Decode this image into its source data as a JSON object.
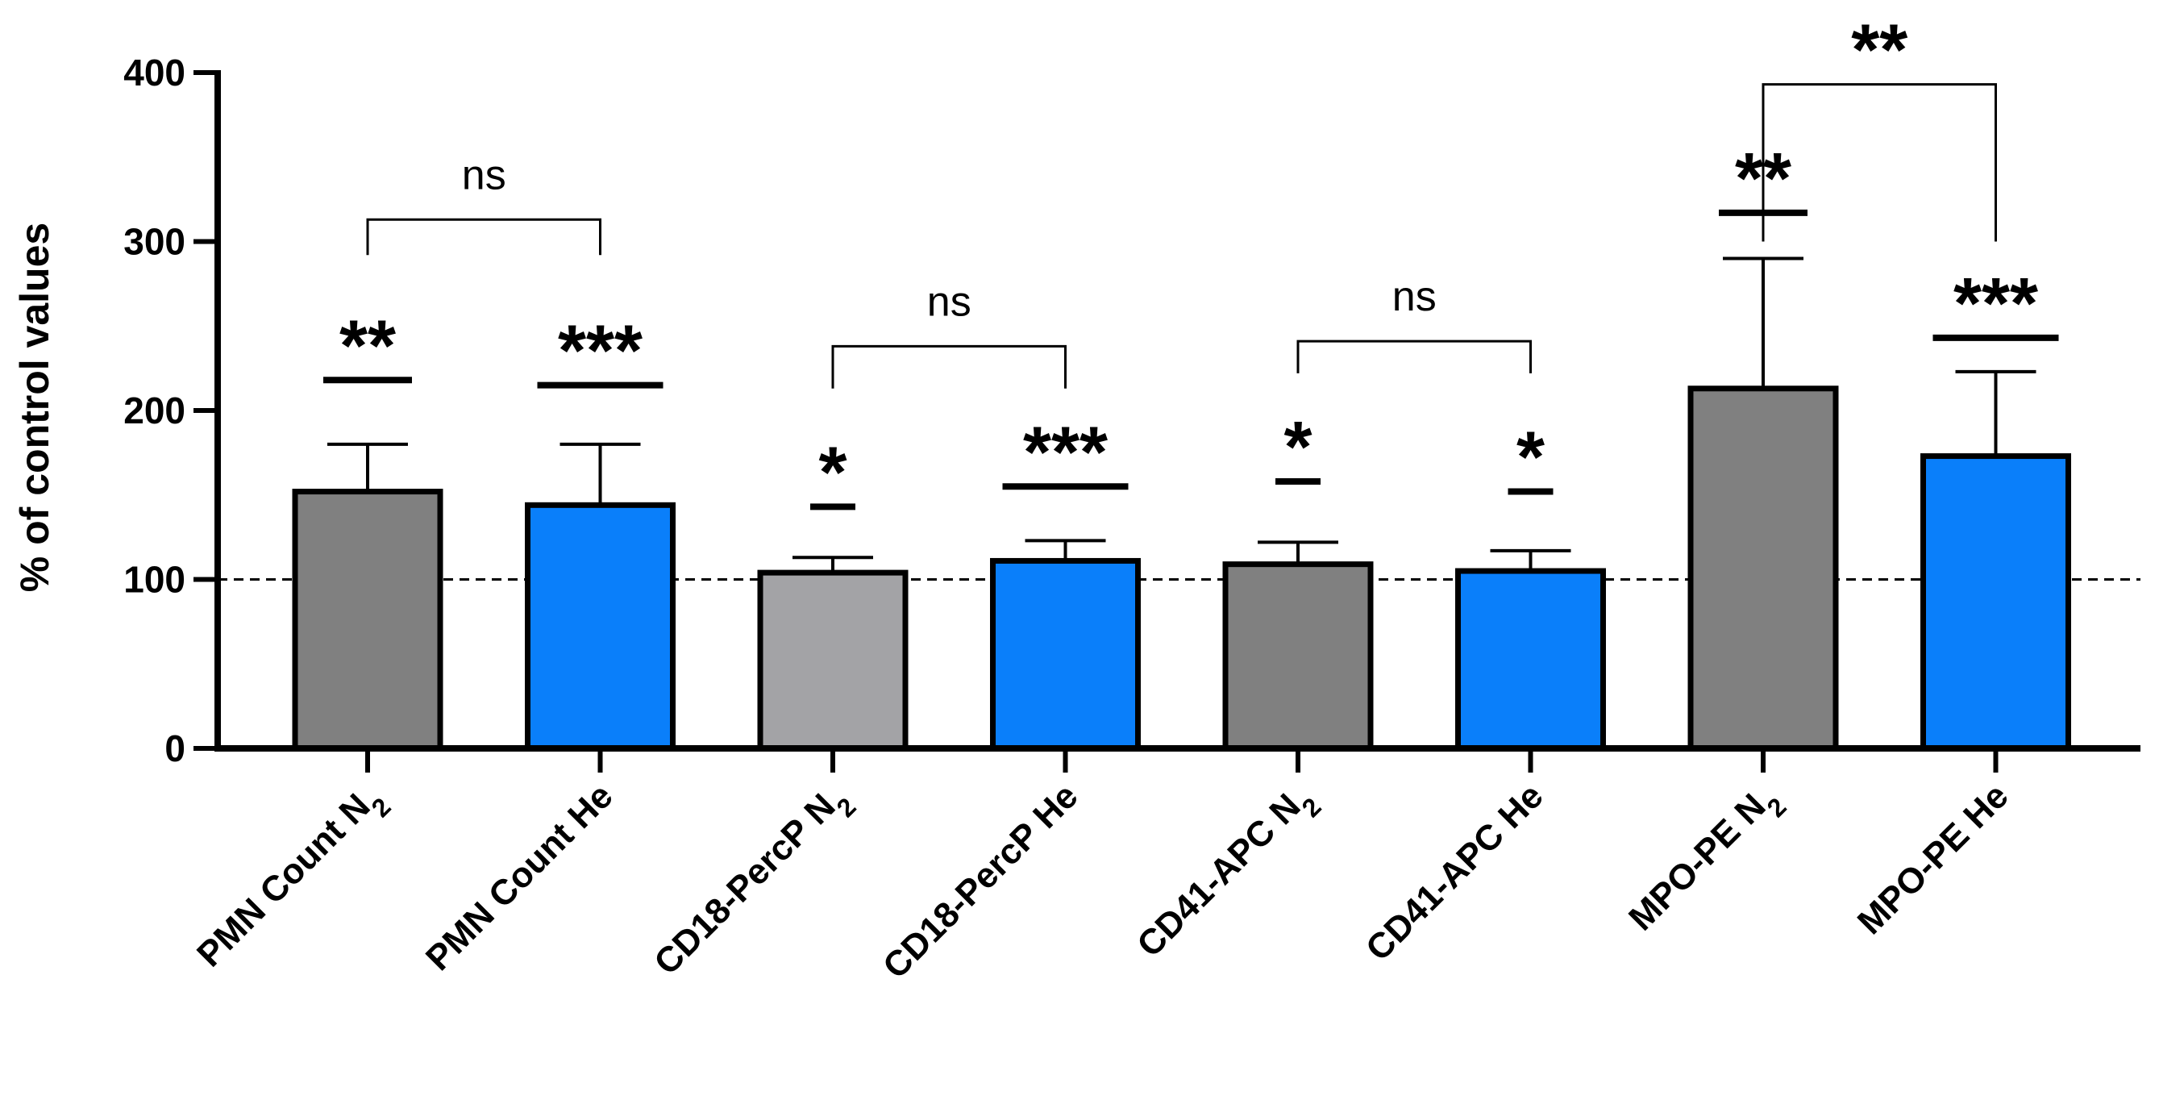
{
  "chart_data": {
    "type": "bar",
    "title": "",
    "xlabel": "",
    "ylabel": "% of control values",
    "ylim": [
      0,
      400
    ],
    "yticks": [
      0,
      100,
      200,
      300,
      400
    ],
    "reference_line": {
      "value": 100,
      "style": "dashed"
    },
    "categories": [
      {
        "base": "PMN Count N",
        "sub": "2"
      },
      {
        "base": "PMN Count He",
        "sub": ""
      },
      {
        "base": "CD18-PercP N",
        "sub": "2"
      },
      {
        "base": "CD18-PercP He",
        "sub": ""
      },
      {
        "base": "CD41-APC N",
        "sub": "2"
      },
      {
        "base": "CD41-APC He",
        "sub": ""
      },
      {
        "base": "MPO-PE  N",
        "sub": "2"
      },
      {
        "base": "MPO-PE  He",
        "sub": ""
      }
    ],
    "values": [
      152,
      144,
      104,
      111,
      109,
      105,
      213,
      173
    ],
    "error_upper": [
      180,
      180,
      113,
      123,
      122,
      117,
      290,
      223
    ],
    "colors": [
      "#808080",
      "#0a7ffa",
      "#a3a3a6",
      "#0a7ffa",
      "#808080",
      "#0a7ffa",
      "#808080",
      "#0a7ffa"
    ],
    "significance": [
      {
        "label": "**",
        "line_value": 218
      },
      {
        "label": "***",
        "line_value": 215
      },
      {
        "label": "*",
        "line_value": 143
      },
      {
        "label": "***",
        "line_value": 155
      },
      {
        "label": "*",
        "line_value": 158
      },
      {
        "label": "*",
        "line_value": 152
      },
      {
        "label": "**",
        "line_value": 317
      },
      {
        "label": "***",
        "line_value": 243
      }
    ],
    "comparisons": [
      {
        "from": 0,
        "to": 1,
        "label": "ns",
        "line_value": 313,
        "bottom_value": 292
      },
      {
        "from": 2,
        "to": 3,
        "label": "ns",
        "line_value": 238,
        "bottom_value": 213
      },
      {
        "from": 4,
        "to": 5,
        "label": "ns",
        "line_value": 241,
        "bottom_value": 222
      },
      {
        "from": 6,
        "to": 7,
        "label": "**",
        "line_value": 393,
        "bottom_value": 300
      }
    ]
  }
}
